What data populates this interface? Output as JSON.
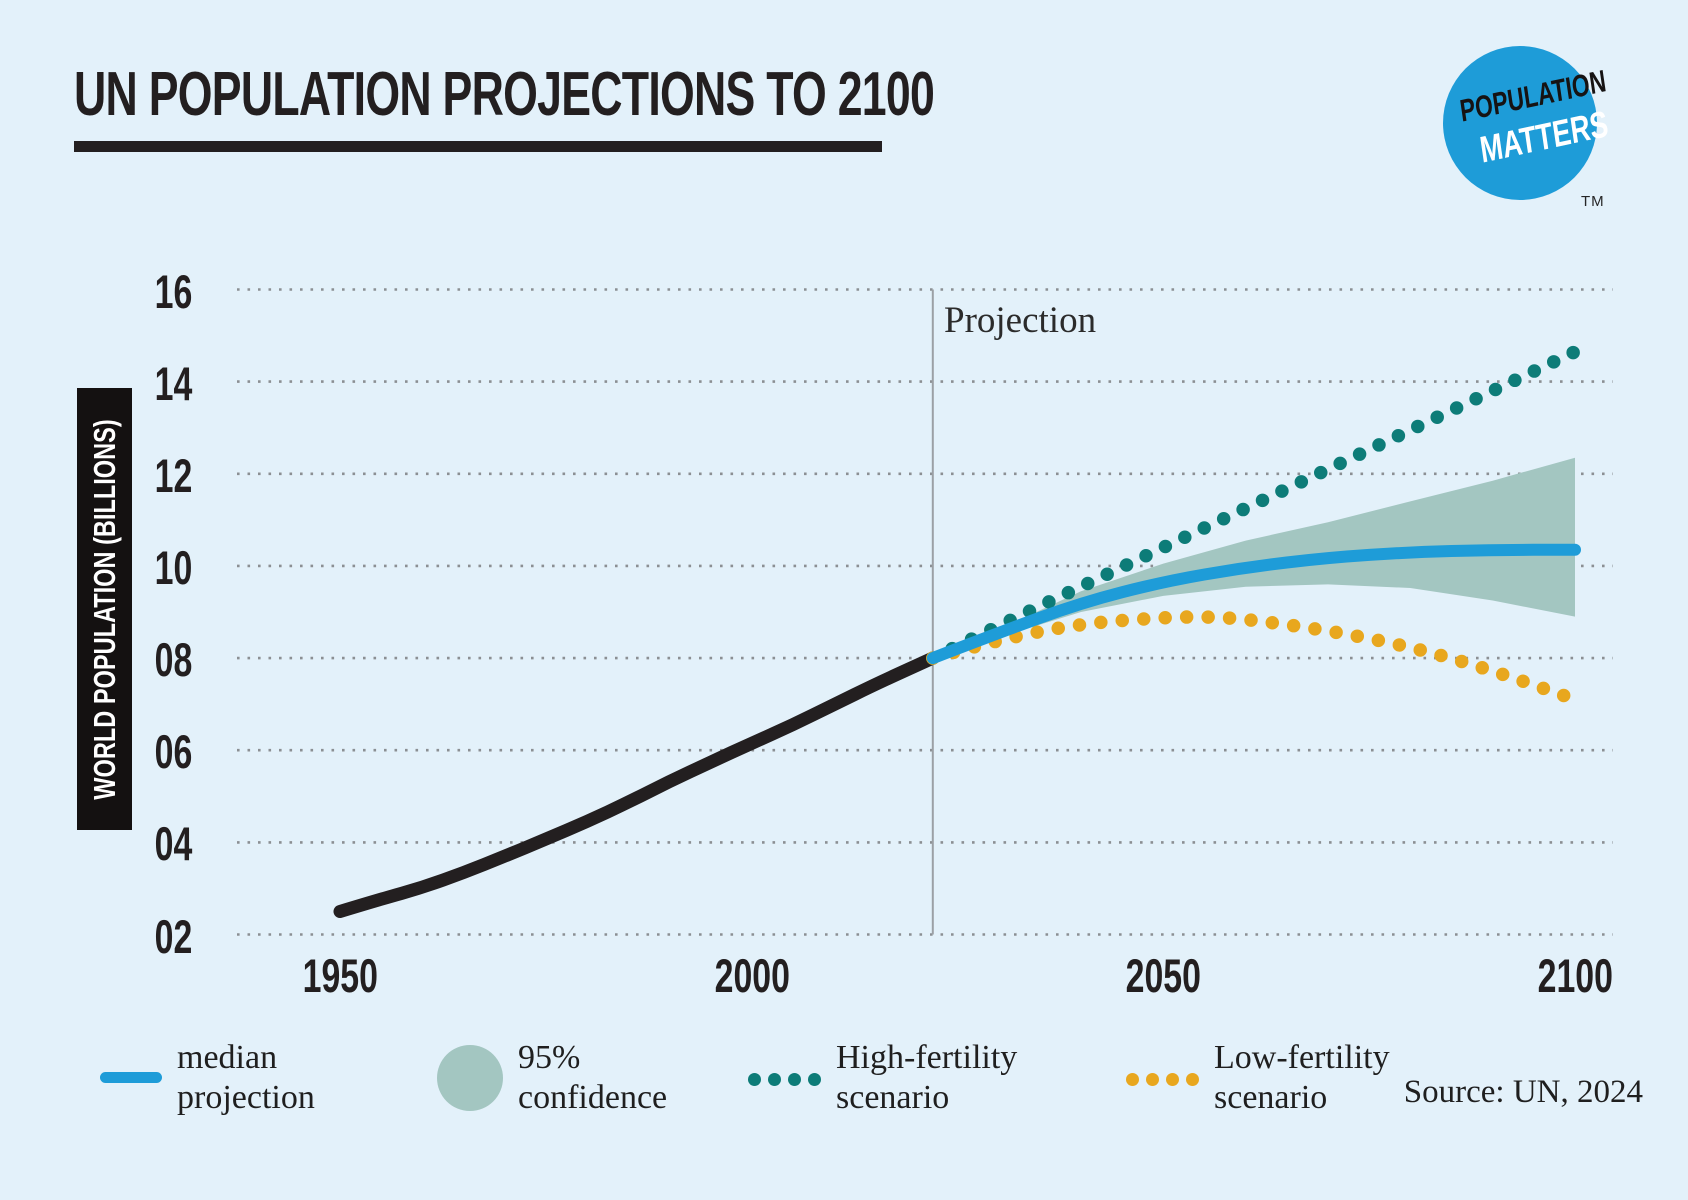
{
  "title": "UN POPULATION PROJECTIONS TO 2100",
  "y_axis_label": "WORLD POPULATION (BILLIONS)",
  "source": "Source: UN, 2024",
  "logo": {
    "line1": "POPULATION",
    "line2": "MATTERS",
    "tm": "TM"
  },
  "legend": {
    "items": [
      {
        "line1": "median",
        "line2": "projection",
        "swatch": "line",
        "color_key": "median"
      },
      {
        "line1": "95%",
        "line2": "confidence",
        "swatch": "circle",
        "color_key": "band"
      },
      {
        "line1": "High-fertility",
        "line2": "scenario",
        "swatch": "dots",
        "color_key": "high"
      },
      {
        "line1": "Low-fertility",
        "line2": "scenario",
        "swatch": "dots",
        "color_key": "low"
      }
    ]
  },
  "colors": {
    "background": "#E3F1FA",
    "historical": "#231F20",
    "median": "#1E9CD8",
    "high": "#0D7C78",
    "low": "#E8A71E",
    "band": "#A3C6C1",
    "grid": "#8B8F93",
    "divider": "#9BA0A5",
    "logo_blue": "#1E9CD8",
    "text_dark": "#231F20"
  },
  "chart_data": {
    "type": "line",
    "title": "UN POPULATION PROJECTIONS TO 2100",
    "xlabel": "",
    "ylabel": "WORLD POPULATION (BILLIONS)",
    "annotation": "Projection",
    "projection_divider_year": 2022,
    "xlim": [
      1950,
      2100
    ],
    "ylim": [
      2,
      16
    ],
    "grid": "dotted-horizontal",
    "legend_position": "bottom",
    "x_ticks": [
      {
        "label": "1950",
        "year": 1950
      },
      {
        "label": "2000",
        "year": 2000
      },
      {
        "label": "2050",
        "year": 2050
      },
      {
        "label": "2100",
        "year": 2100
      }
    ],
    "y_ticks": [
      {
        "label": "16",
        "value": 16
      },
      {
        "label": "14",
        "value": 14
      },
      {
        "label": "12",
        "value": 12
      },
      {
        "label": "10",
        "value": 10
      },
      {
        "label": "08",
        "value": 8
      },
      {
        "label": "06",
        "value": 6
      },
      {
        "label": "04",
        "value": 4
      },
      {
        "label": "02",
        "value": 2
      }
    ],
    "series": [
      {
        "name": "95% confidence",
        "type": "band",
        "color_key": "band",
        "upper": [
          [
            2022,
            8.0
          ],
          [
            2030,
            8.62
          ],
          [
            2040,
            9.45
          ],
          [
            2050,
            10.05
          ],
          [
            2060,
            10.55
          ],
          [
            2070,
            10.95
          ],
          [
            2080,
            11.4
          ],
          [
            2090,
            11.85
          ],
          [
            2100,
            12.35
          ]
        ],
        "lower": [
          [
            2022,
            8.0
          ],
          [
            2030,
            8.45
          ],
          [
            2040,
            9.0
          ],
          [
            2050,
            9.35
          ],
          [
            2060,
            9.55
          ],
          [
            2070,
            9.6
          ],
          [
            2080,
            9.52
          ],
          [
            2090,
            9.25
          ],
          [
            2100,
            8.9
          ]
        ]
      },
      {
        "name": "historical",
        "type": "solid",
        "color_key": "historical",
        "width": 13,
        "points": [
          [
            1950,
            2.5
          ],
          [
            1955,
            2.77
          ],
          [
            1960,
            3.02
          ],
          [
            1965,
            3.34
          ],
          [
            1970,
            3.7
          ],
          [
            1975,
            4.07
          ],
          [
            1980,
            4.45
          ],
          [
            1985,
            4.87
          ],
          [
            1990,
            5.32
          ],
          [
            1995,
            5.74
          ],
          [
            2000,
            6.15
          ],
          [
            2005,
            6.55
          ],
          [
            2010,
            6.99
          ],
          [
            2015,
            7.43
          ],
          [
            2022,
            8.0
          ]
        ]
      },
      {
        "name": "High-fertility scenario",
        "type": "dotted",
        "color_key": "high",
        "width": 13.5,
        "points": [
          [
            2022,
            8.0
          ],
          [
            2030,
            8.7
          ],
          [
            2040,
            9.55
          ],
          [
            2050,
            10.4
          ],
          [
            2060,
            11.25
          ],
          [
            2070,
            12.1
          ],
          [
            2080,
            12.95
          ],
          [
            2090,
            13.8
          ],
          [
            2100,
            14.65
          ]
        ]
      },
      {
        "name": "Low-fertility scenario",
        "type": "dotted",
        "color_key": "low",
        "width": 13.5,
        "points": [
          [
            2022,
            8.0
          ],
          [
            2030,
            8.4
          ],
          [
            2040,
            8.75
          ],
          [
            2050,
            8.88
          ],
          [
            2055,
            8.9
          ],
          [
            2060,
            8.85
          ],
          [
            2070,
            8.6
          ],
          [
            2080,
            8.25
          ],
          [
            2090,
            7.73
          ],
          [
            2100,
            7.1
          ]
        ]
      },
      {
        "name": "median projection",
        "type": "solid",
        "color_key": "median",
        "width": 12,
        "points": [
          [
            2022,
            8.0
          ],
          [
            2030,
            8.55
          ],
          [
            2040,
            9.2
          ],
          [
            2050,
            9.66
          ],
          [
            2060,
            9.97
          ],
          [
            2070,
            10.18
          ],
          [
            2080,
            10.3
          ],
          [
            2090,
            10.35
          ],
          [
            2100,
            10.35
          ]
        ]
      }
    ]
  }
}
